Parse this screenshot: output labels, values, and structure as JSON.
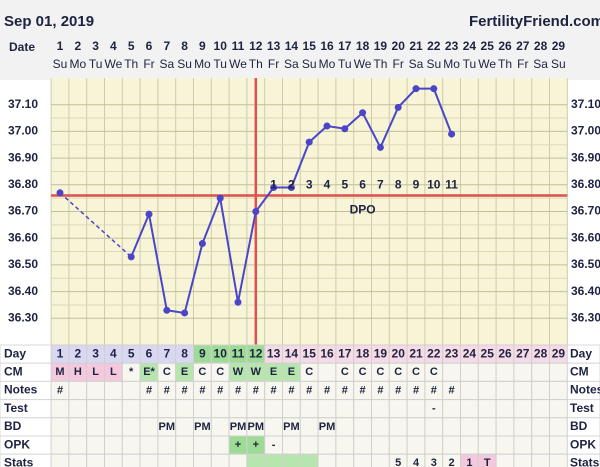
{
  "chart_data": {
    "type": "line",
    "title": "Sep 01, 2019",
    "site": "FertilityFriend.com",
    "date_label": "Date",
    "categories": [
      1,
      2,
      3,
      4,
      5,
      6,
      7,
      8,
      9,
      10,
      11,
      12,
      13,
      14,
      15,
      16,
      17,
      18,
      19,
      20,
      21,
      22,
      23,
      24,
      25,
      26,
      27,
      28,
      29
    ],
    "weekdays": [
      "Su",
      "Mo",
      "Tu",
      "We",
      "Th",
      "Fr",
      "Sa",
      "Su",
      "Mo",
      "Tu",
      "We",
      "Th",
      "Fr",
      "Sa",
      "Su",
      "Mo",
      "Tu",
      "We",
      "Th",
      "Fr",
      "Sa",
      "Su",
      "Mo",
      "Tu",
      "We",
      "Th",
      "Fr",
      "Sa",
      "Su"
    ],
    "color": "#4b46c8",
    "values": [
      36.77,
      null,
      null,
      null,
      36.53,
      36.69,
      36.33,
      36.32,
      36.58,
      36.75,
      36.36,
      36.7,
      36.79,
      36.79,
      36.96,
      37.02,
      37.01,
      37.07,
      36.94,
      37.09,
      37.16,
      37.16,
      36.99,
      null,
      null,
      null,
      null,
      null,
      null
    ],
    "ylim": [
      36.2,
      37.2
    ],
    "yticks": [
      {
        "value": 36.3,
        "label": "36.30"
      },
      {
        "value": 36.4,
        "label": "36.40"
      },
      {
        "value": 36.5,
        "label": "36.50"
      },
      {
        "value": 36.6,
        "label": "36.60"
      },
      {
        "value": 36.7,
        "label": "36.70"
      },
      {
        "value": 36.8,
        "label": "36.80"
      },
      {
        "value": 36.9,
        "label": "36.90"
      },
      {
        "value": 37.0,
        "label": "37.00"
      },
      {
        "value": 37.1,
        "label": "37.10"
      }
    ],
    "grid": true,
    "coverline": 36.76,
    "coverline_color": "#e0504c",
    "ovulation_day": 12,
    "dpo": {
      "label": "DPO",
      "numbers": [
        1,
        2,
        3,
        4,
        5,
        6,
        7,
        8,
        9,
        10,
        11
      ]
    }
  },
  "table": {
    "rows": [
      {
        "label": "Day",
        "cells": []
      },
      {
        "label": "CM",
        "cells": [
          "M",
          "H",
          "L",
          "L",
          "*",
          "E*",
          "C",
          "E",
          "C",
          "C",
          "W",
          "W",
          "E",
          "E",
          "C",
          null,
          "C",
          "C",
          "C",
          "C",
          "C",
          "C",
          null,
          null,
          null,
          null,
          null,
          null,
          null
        ]
      },
      {
        "label": "Notes",
        "cells": [
          "#",
          null,
          null,
          null,
          null,
          "#",
          "#",
          "#",
          "#",
          "#",
          "#",
          "#",
          "#",
          "#",
          "#",
          "#",
          "#",
          "#",
          "#",
          "#",
          "#",
          "#",
          "#",
          null,
          null,
          null,
          null,
          null,
          null
        ]
      },
      {
        "label": "Test",
        "cells": [
          null,
          null,
          null,
          null,
          null,
          null,
          null,
          null,
          null,
          null,
          null,
          null,
          null,
          null,
          null,
          null,
          null,
          null,
          null,
          null,
          null,
          "-",
          null,
          null,
          null,
          null,
          null,
          null,
          null
        ]
      },
      {
        "label": "BD",
        "cells": [
          null,
          null,
          null,
          null,
          null,
          null,
          "PM",
          null,
          "PM",
          null,
          "PM",
          "PM",
          null,
          "PM",
          null,
          "PM",
          null,
          null,
          null,
          null,
          null,
          null,
          null,
          null,
          null,
          null,
          null,
          null,
          null
        ]
      },
      {
        "label": "OPK",
        "cells": [
          null,
          null,
          null,
          null,
          null,
          null,
          null,
          null,
          null,
          null,
          "+",
          "+",
          "-",
          null,
          null,
          null,
          null,
          null,
          null,
          null,
          null,
          null,
          null,
          null,
          null,
          null,
          null,
          null,
          null
        ]
      },
      {
        "label": "Stats",
        "cells": [
          null,
          null,
          null,
          null,
          null,
          null,
          null,
          null,
          null,
          null,
          null,
          null,
          null,
          null,
          null,
          null,
          null,
          null,
          null,
          "5",
          "4",
          "3",
          "2",
          "1",
          "T",
          null,
          null,
          null,
          null
        ]
      }
    ]
  }
}
